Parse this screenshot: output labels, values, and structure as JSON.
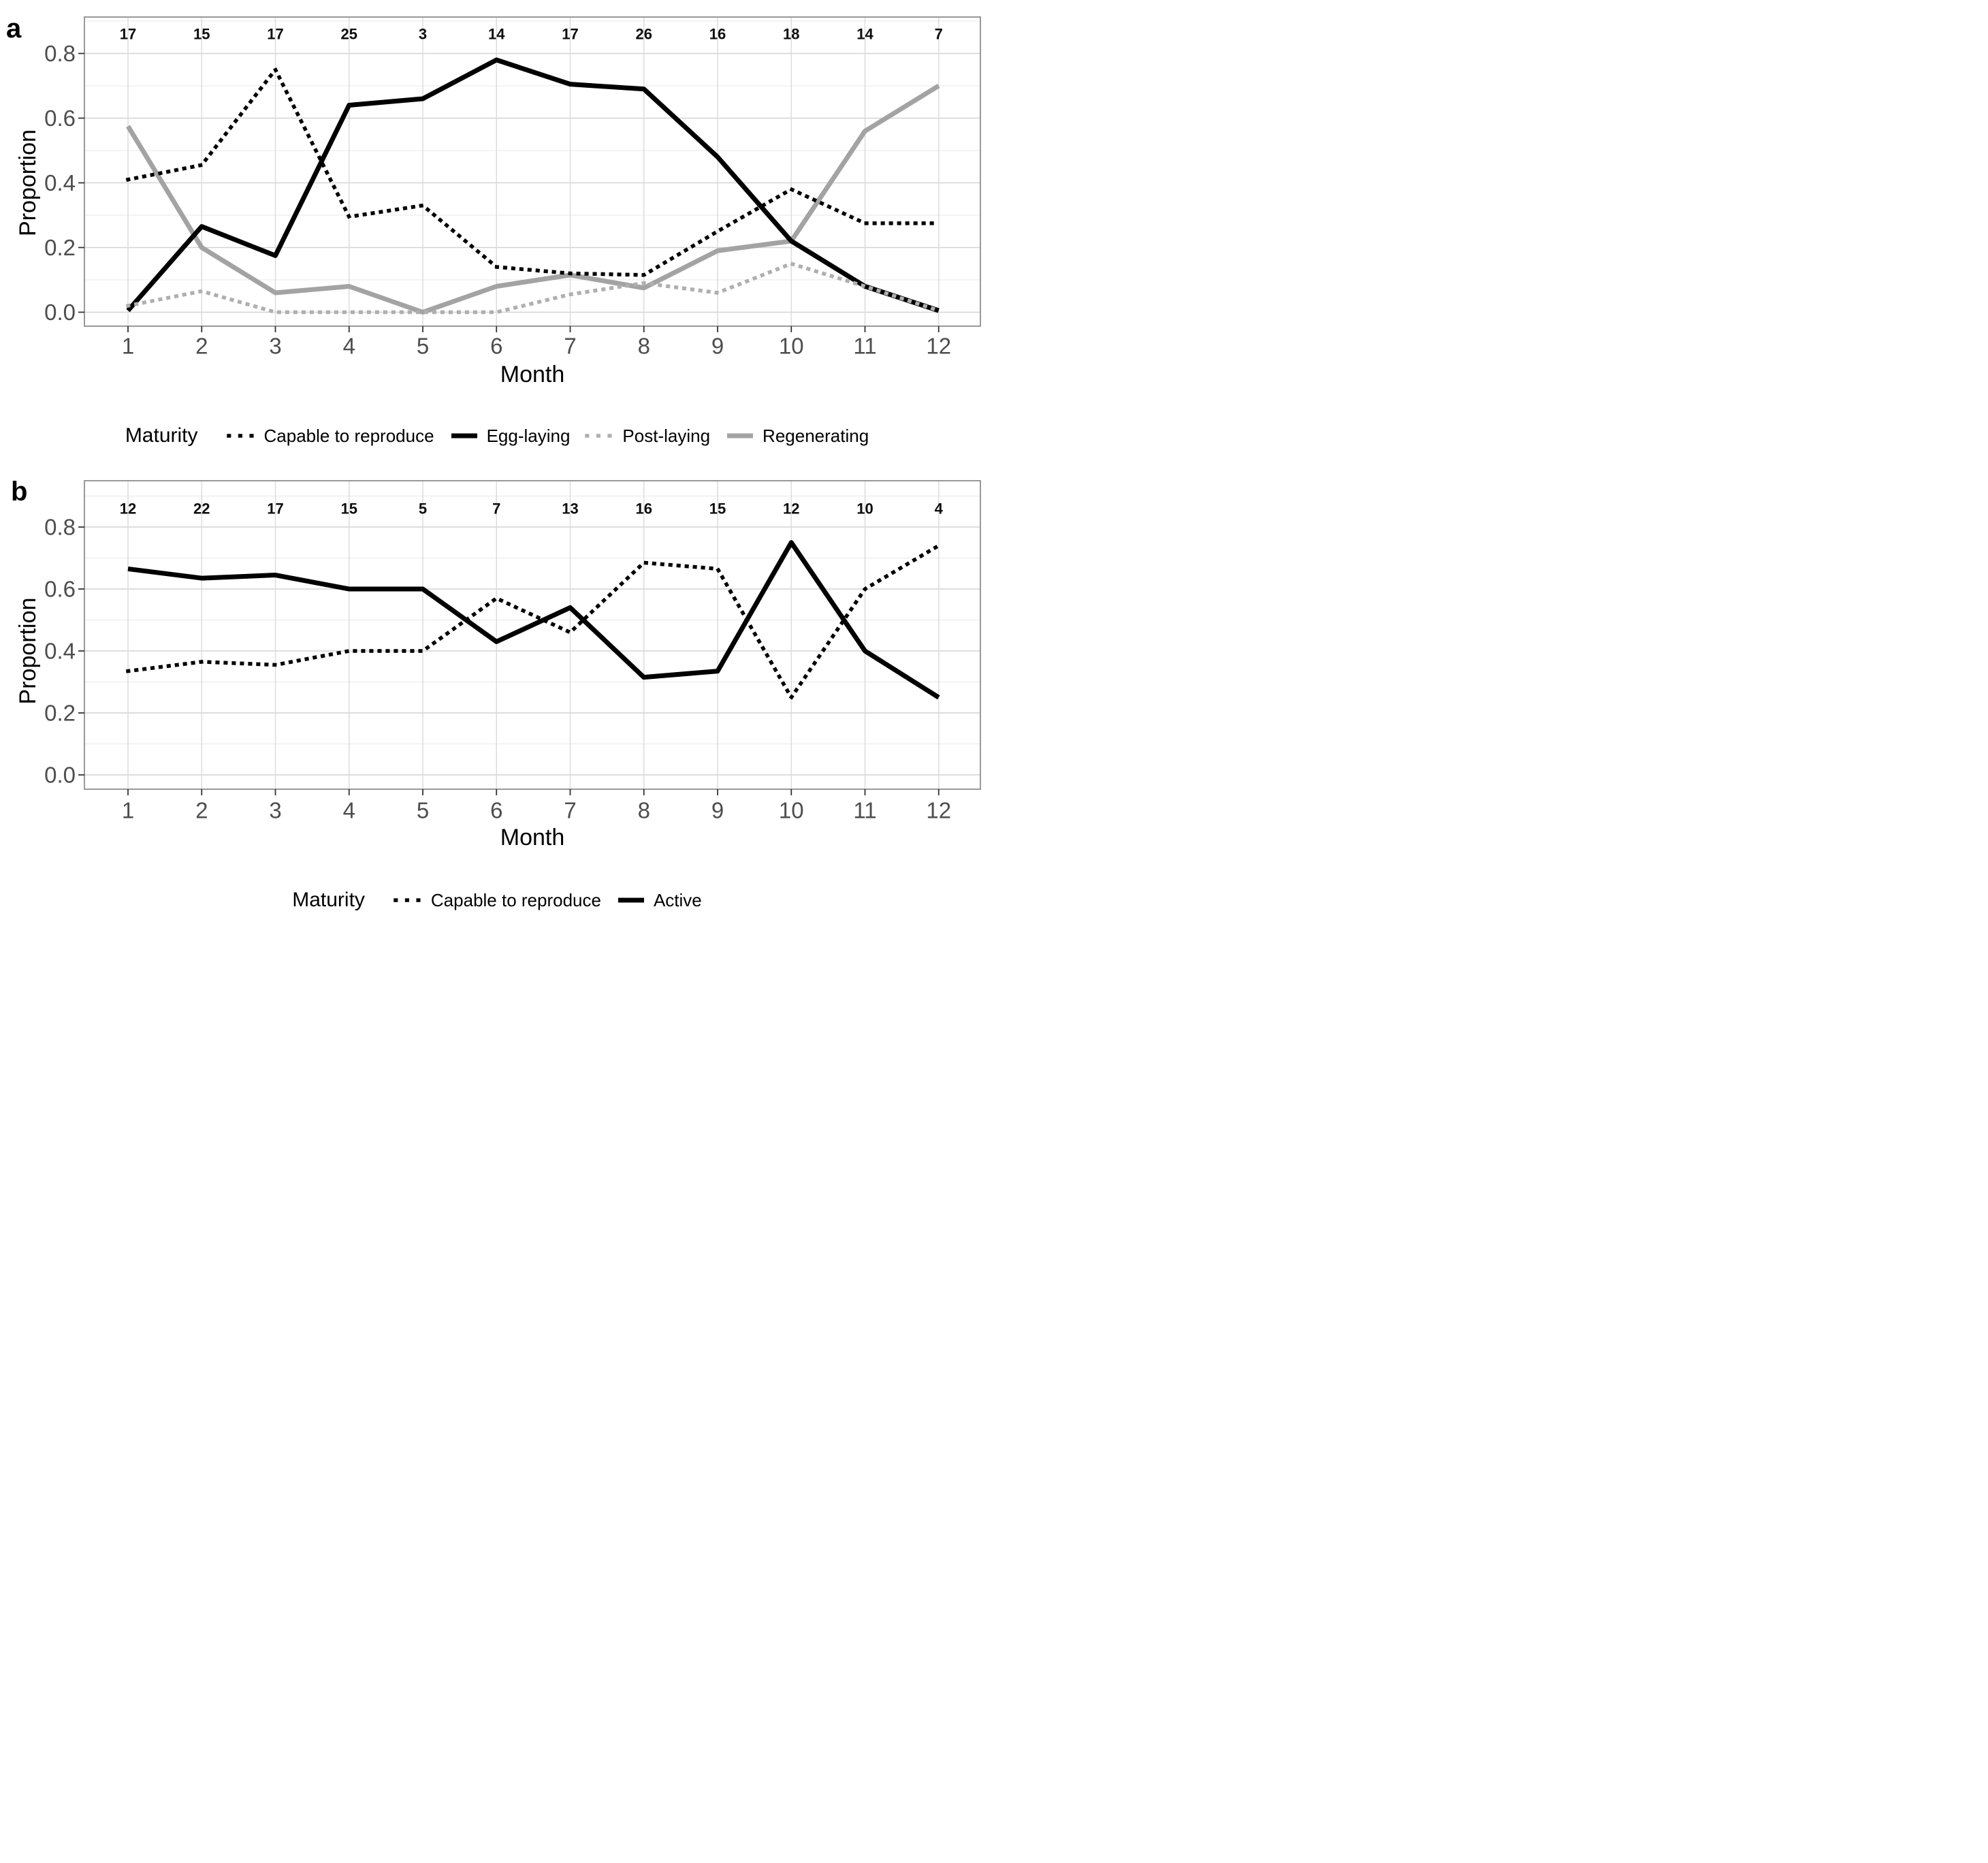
{
  "figure": {
    "background": "#ffffff",
    "text_color_ticks": "#4d4d4d",
    "black": "#000000",
    "gray_solid": "#a3a3a3",
    "gray_dotted": "#afafaf"
  },
  "chart_data": [
    {
      "id": "a",
      "panel_label": "a",
      "type": "line",
      "xlabel": "Month",
      "ylabel": "Proportion",
      "legend_title": "Maturity",
      "legend_position": "bottom",
      "grid": "on",
      "x": [
        1,
        2,
        3,
        4,
        5,
        6,
        7,
        8,
        9,
        10,
        11,
        12
      ],
      "x_ticks": [
        "1",
        "2",
        "3",
        "4",
        "5",
        "6",
        "7",
        "8",
        "9",
        "10",
        "11",
        "12"
      ],
      "y_ticks": [
        "0.0",
        "0.2",
        "0.4",
        "0.6",
        "0.8"
      ],
      "y_tick_values": [
        0,
        0.2,
        0.4,
        0.6,
        0.8
      ],
      "ylim": [
        0,
        0.8
      ],
      "sample_counts": [
        17,
        15,
        17,
        25,
        3,
        14,
        17,
        26,
        16,
        18,
        14,
        7
      ],
      "sample_counts_y": 0.86,
      "series": [
        {
          "name": "Regenerating",
          "style": "solid",
          "color": "#a3a3a3",
          "values": [
            0.575,
            0.2,
            0.06,
            0.08,
            0.0,
            0.08,
            0.115,
            0.075,
            0.19,
            0.22,
            0.56,
            0.7
          ]
        },
        {
          "name": "Egg-laying",
          "style": "solid",
          "color": "#000000",
          "values": [
            0.005,
            0.265,
            0.175,
            0.64,
            0.66,
            0.78,
            0.705,
            0.69,
            0.48,
            0.22,
            0.08,
            0.005
          ]
        },
        {
          "name": "Post-laying",
          "style": "dotted",
          "color": "#afafaf",
          "values": [
            0.02,
            0.065,
            0.0,
            0.0,
            0.0,
            0.0,
            0.055,
            0.09,
            0.06,
            0.15,
            0.08,
            0.005
          ]
        },
        {
          "name": "Capable to reproduce",
          "style": "dotted",
          "color": "#000000",
          "values": [
            0.41,
            0.455,
            0.75,
            0.295,
            0.33,
            0.14,
            0.12,
            0.115,
            0.25,
            0.38,
            0.275,
            0.275
          ]
        }
      ],
      "legend_order": [
        "Capable to reproduce",
        "Egg-laying",
        "Post-laying",
        "Regenerating"
      ]
    },
    {
      "id": "b",
      "panel_label": "b",
      "type": "line",
      "xlabel": "Month",
      "ylabel": "Proportion",
      "legend_title": "Maturity",
      "legend_position": "bottom",
      "grid": "on",
      "x": [
        1,
        2,
        3,
        4,
        5,
        6,
        7,
        8,
        9,
        10,
        11,
        12
      ],
      "x_ticks": [
        "1",
        "2",
        "3",
        "4",
        "5",
        "6",
        "7",
        "8",
        "9",
        "10",
        "11",
        "12"
      ],
      "y_ticks": [
        "0.0",
        "0.2",
        "0.4",
        "0.6",
        "0.8"
      ],
      "y_tick_values": [
        0,
        0.2,
        0.4,
        0.6,
        0.8
      ],
      "ylim": [
        0,
        0.8
      ],
      "sample_counts": [
        12,
        22,
        17,
        15,
        5,
        7,
        13,
        16,
        15,
        12,
        10,
        4
      ],
      "sample_counts_y": 0.86,
      "series": [
        {
          "name": "Active",
          "style": "solid",
          "color": "#000000",
          "values": [
            0.665,
            0.635,
            0.645,
            0.6,
            0.6,
            0.43,
            0.54,
            0.315,
            0.335,
            0.75,
            0.4,
            0.25
          ]
        },
        {
          "name": "Capable to reproduce",
          "style": "dotted",
          "color": "#000000",
          "values": [
            0.335,
            0.365,
            0.355,
            0.4,
            0.4,
            0.57,
            0.46,
            0.685,
            0.665,
            0.25,
            0.6,
            0.74
          ]
        }
      ],
      "legend_order": [
        "Capable to reproduce",
        "Active"
      ]
    }
  ]
}
